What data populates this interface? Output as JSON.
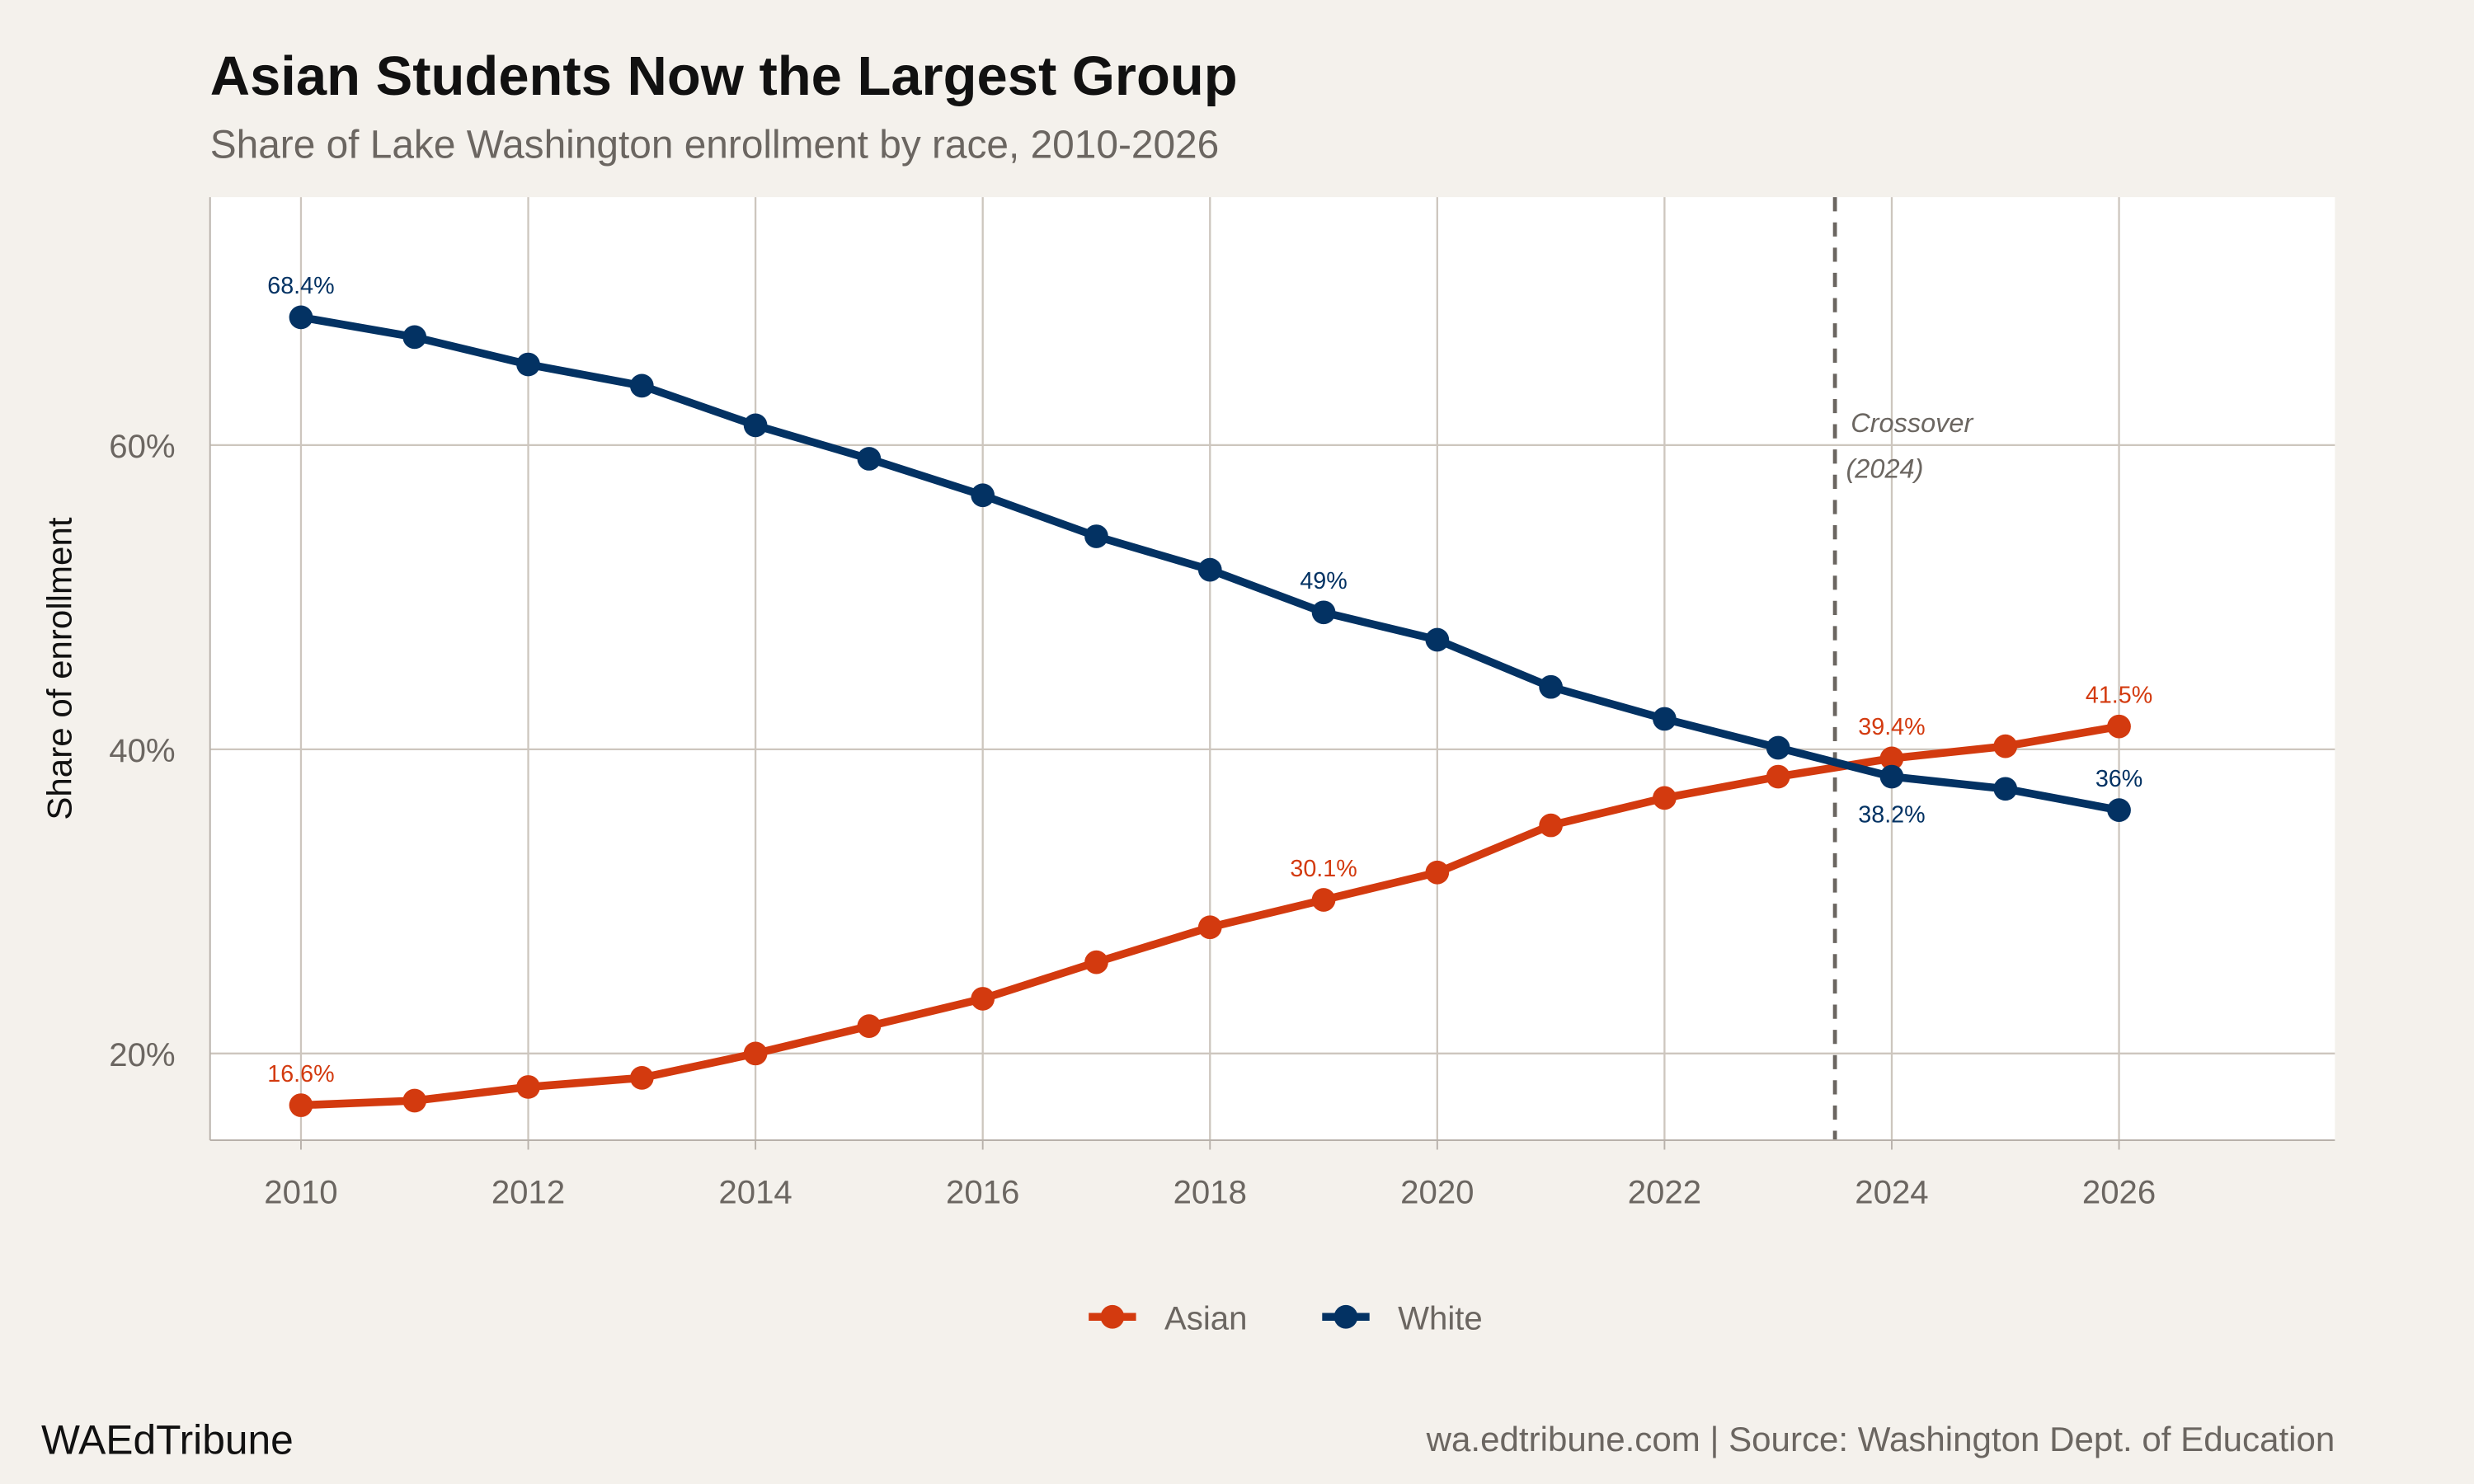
{
  "chart_data": {
    "type": "line",
    "title": "Asian Students Now the Largest Group",
    "subtitle": "Share of Lake Washington enrollment by race, 2010-2026",
    "xlabel": "",
    "ylabel": "Share of enrollment",
    "x": [
      2010,
      2011,
      2012,
      2013,
      2014,
      2015,
      2016,
      2017,
      2018,
      2019,
      2020,
      2021,
      2022,
      2023,
      2024,
      2025,
      2026
    ],
    "xlim": [
      2009.2,
      2027.9
    ],
    "ylim": [
      14.3,
      76.3
    ],
    "x_ticks": [
      2010,
      2012,
      2014,
      2016,
      2018,
      2020,
      2022,
      2024,
      2026
    ],
    "y_ticks": [
      {
        "value": 20,
        "label": "20%"
      },
      {
        "value": 40,
        "label": "40%"
      },
      {
        "value": 60,
        "label": "60%"
      }
    ],
    "grid": true,
    "legend_position": "bottom",
    "series": [
      {
        "name": "Asian",
        "color": "#d33a0f",
        "values": [
          16.6,
          16.9,
          17.8,
          18.4,
          20.0,
          21.8,
          23.6,
          26.0,
          28.3,
          30.1,
          31.9,
          35.0,
          36.8,
          38.2,
          39.4,
          40.2,
          41.5
        ],
        "labels": [
          {
            "year": 2010,
            "text": "16.6%"
          },
          {
            "year": 2019,
            "text": "30.1%"
          },
          {
            "year": 2024,
            "text": "39.4%"
          },
          {
            "year": 2026,
            "text": "41.5%"
          }
        ]
      },
      {
        "name": "White",
        "color": "#033263",
        "values": [
          68.4,
          67.1,
          65.3,
          63.9,
          61.3,
          59.1,
          56.7,
          54.0,
          51.8,
          49.0,
          47.2,
          44.1,
          42.0,
          40.1,
          38.2,
          37.4,
          36.0
        ],
        "labels": [
          {
            "year": 2010,
            "text": "68.4%"
          },
          {
            "year": 2019,
            "text": "49%"
          },
          {
            "year": 2024,
            "text": "38.2%"
          },
          {
            "year": 2026,
            "text": "36%"
          }
        ]
      }
    ],
    "annotations": [
      {
        "type": "vline",
        "x": 2023.5,
        "line1": "Crossover",
        "line2": "(2024)"
      }
    ]
  },
  "footer": {
    "brand": "WAEdTribune",
    "source": "wa.edtribune.com | Source: Washington Dept. of Education"
  }
}
